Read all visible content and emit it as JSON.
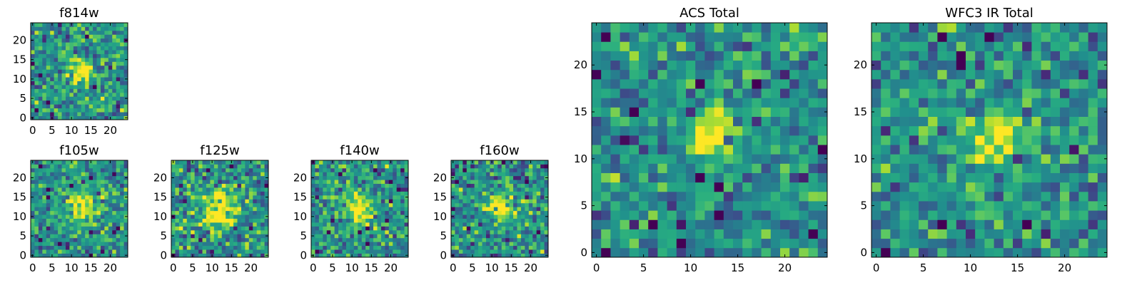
{
  "chart_data": [
    {
      "id": "f814w",
      "type": "heatmap",
      "title": "f814w",
      "grid_size": 25,
      "xlim": [
        -0.5,
        24.5
      ],
      "ylim": [
        -0.5,
        24.5
      ],
      "xticks": [
        0,
        5,
        10,
        15,
        20
      ],
      "yticks": [
        0,
        5,
        10,
        15,
        20
      ],
      "colormap": "viridis",
      "blob_center": [
        12.5,
        12
      ],
      "blob_sigma": 2.2,
      "noise": 0.34,
      "seed": 11
    },
    {
      "id": "f105w",
      "type": "heatmap",
      "title": "f105w",
      "grid_size": 25,
      "xlim": [
        -0.5,
        24.5
      ],
      "ylim": [
        -0.5,
        24.5
      ],
      "xticks": [
        0,
        5,
        10,
        15,
        20
      ],
      "yticks": [
        0,
        5,
        10,
        15,
        20
      ],
      "colormap": "viridis",
      "blob_center": [
        13,
        12.5
      ],
      "blob_sigma": 2.8,
      "noise": 0.3,
      "seed": 23
    },
    {
      "id": "f125w",
      "type": "heatmap",
      "title": "f125w",
      "grid_size": 25,
      "xlim": [
        -0.5,
        24.5
      ],
      "ylim": [
        -0.5,
        24.5
      ],
      "xticks": [
        0,
        5,
        10,
        15,
        20
      ],
      "yticks": [
        0,
        5,
        10,
        15,
        20
      ],
      "colormap": "viridis",
      "blob_center": [
        12,
        12
      ],
      "blob_sigma": 3.5,
      "noise": 0.36,
      "seed": 37
    },
    {
      "id": "f140w",
      "type": "heatmap",
      "title": "f140w",
      "grid_size": 25,
      "xlim": [
        -0.5,
        24.5
      ],
      "ylim": [
        -0.5,
        24.5
      ],
      "xticks": [
        0,
        5,
        10,
        15,
        20
      ],
      "yticks": [
        0,
        5,
        10,
        15,
        20
      ],
      "colormap": "viridis",
      "blob_center": [
        11.5,
        11.5
      ],
      "blob_sigma": 2.6,
      "noise": 0.33,
      "seed": 41
    },
    {
      "id": "f160w",
      "type": "heatmap",
      "title": "f160w",
      "grid_size": 25,
      "xlim": [
        -0.5,
        24.5
      ],
      "ylim": [
        -0.5,
        24.5
      ],
      "xticks": [
        0,
        5,
        10,
        15,
        20
      ],
      "yticks": [
        0,
        5,
        10,
        15,
        20
      ],
      "colormap": "viridis",
      "blob_center": [
        12,
        12.5
      ],
      "blob_sigma": 2.4,
      "noise": 0.35,
      "seed": 53
    },
    {
      "id": "acs-total",
      "type": "heatmap",
      "title": "ACS Total",
      "grid_size": 25,
      "xlim": [
        -0.5,
        24.5
      ],
      "ylim": [
        -0.5,
        24.5
      ],
      "xticks": [
        0,
        5,
        10,
        15,
        20
      ],
      "yticks": [
        0,
        5,
        10,
        15,
        20
      ],
      "colormap": "viridis",
      "blob_center": [
        12.5,
        12.5
      ],
      "blob_sigma": 2.0,
      "noise": 0.3,
      "seed": 67
    },
    {
      "id": "wfc3-ir-total",
      "type": "heatmap",
      "title": "WFC3 IR Total",
      "grid_size": 25,
      "xlim": [
        -0.5,
        24.5
      ],
      "ylim": [
        -0.5,
        24.5
      ],
      "xticks": [
        0,
        5,
        10,
        15,
        20
      ],
      "yticks": [
        0,
        5,
        10,
        15,
        20
      ],
      "colormap": "viridis",
      "blob_center": [
        13,
        12.5
      ],
      "blob_sigma": 1.8,
      "noise": 0.3,
      "seed": 79
    }
  ]
}
